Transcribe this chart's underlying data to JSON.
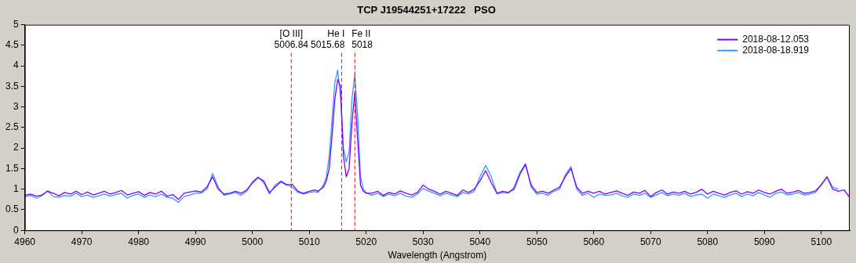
{
  "chart_data": {
    "type": "line",
    "title": "TCP J19544251+17222   PSO",
    "xlabel": "Wavelength (Angstrom)",
    "x": [
      4960,
      4961,
      4962,
      4963,
      4964,
      4965,
      4966,
      4967,
      4968,
      4969,
      4970,
      4971,
      4972,
      4973,
      4974,
      4975,
      4976,
      4977,
      4978,
      4979,
      4980,
      4981,
      4982,
      4983,
      4984,
      4985,
      4986,
      4987,
      4988,
      4989,
      4990,
      4991,
      4992,
      4993,
      4994,
      4995,
      4996,
      4997,
      4998,
      4999,
      5000,
      5001,
      5002,
      5003,
      5004,
      5005,
      5006,
      5007,
      5008,
      5009,
      5010,
      5011,
      5011.5,
      5012,
      5012.5,
      5013,
      5013.5,
      5014,
      5014.5,
      5015,
      5015.5,
      5016,
      5016.5,
      5017,
      5017.5,
      5018,
      5018.5,
      5019,
      5019.5,
      5020,
      5021,
      5022,
      5023,
      5024,
      5025,
      5026,
      5027,
      5028,
      5029,
      5030,
      5031,
      5032,
      5033,
      5034,
      5035,
      5036,
      5037,
      5038,
      5039,
      5040,
      5041,
      5042,
      5043,
      5044,
      5045,
      5046,
      5047,
      5048,
      5049,
      5050,
      5051,
      5052,
      5053,
      5054,
      5055,
      5056,
      5057,
      5058,
      5059,
      5060,
      5061,
      5062,
      5063,
      5064,
      5065,
      5066,
      5067,
      5068,
      5069,
      5070,
      5071,
      5072,
      5073,
      5074,
      5075,
      5076,
      5077,
      5078,
      5079,
      5080,
      5081,
      5082,
      5083,
      5084,
      5085,
      5086,
      5087,
      5088,
      5089,
      5090,
      5091,
      5092,
      5093,
      5094,
      5095,
      5096,
      5097,
      5098,
      5099,
      5100,
      5101,
      5102,
      5103,
      5104,
      5105
    ],
    "series": [
      {
        "name": "2018-08-12.053",
        "color": "#7f00ff",
        "values": [
          0.85,
          0.88,
          0.83,
          0.86,
          0.95,
          0.9,
          0.84,
          0.92,
          0.88,
          0.95,
          0.87,
          0.93,
          0.86,
          0.9,
          0.95,
          0.88,
          0.92,
          0.97,
          0.86,
          0.9,
          0.94,
          0.85,
          0.92,
          0.88,
          0.95,
          0.83,
          0.87,
          0.75,
          0.9,
          0.93,
          0.96,
          0.93,
          1.05,
          1.3,
          1.0,
          0.88,
          0.9,
          0.95,
          0.9,
          0.98,
          1.15,
          1.28,
          1.2,
          0.92,
          1.05,
          1.18,
          1.1,
          1.12,
          0.95,
          0.9,
          0.95,
          0.98,
          0.95,
          1.0,
          1.05,
          1.2,
          1.5,
          2.3,
          3.2,
          3.67,
          3.5,
          1.8,
          1.3,
          1.5,
          2.6,
          3.35,
          2.2,
          1.1,
          0.95,
          0.9,
          0.9,
          0.95,
          0.85,
          0.92,
          0.88,
          0.96,
          0.9,
          0.86,
          0.92,
          1.1,
          1.0,
          0.95,
          0.88,
          0.95,
          0.9,
          0.85,
          0.98,
          0.92,
          1.0,
          1.2,
          1.45,
          1.15,
          0.9,
          0.95,
          0.92,
          1.0,
          1.35,
          1.6,
          1.1,
          0.92,
          0.95,
          0.9,
          0.98,
          1.05,
          1.3,
          1.5,
          1.05,
          0.9,
          0.95,
          0.9,
          0.95,
          0.88,
          0.92,
          0.96,
          0.9,
          0.85,
          0.93,
          0.9,
          0.97,
          0.82,
          0.92,
          0.98,
          0.88,
          0.93,
          0.9,
          0.95,
          0.88,
          0.92,
          1.0,
          0.88,
          0.95,
          0.9,
          0.86,
          0.92,
          0.96,
          0.88,
          0.94,
          0.9,
          0.98,
          0.92,
          0.88,
          0.95,
          1.0,
          0.9,
          0.93,
          0.97,
          0.9,
          0.92,
          0.96,
          1.1,
          1.3,
          1.0,
          0.95,
          0.98,
          0.8
        ]
      },
      {
        "name": "2018-08-18.919",
        "color": "#3399ff",
        "values": [
          0.82,
          0.85,
          0.78,
          0.84,
          0.96,
          0.82,
          0.8,
          0.85,
          0.83,
          0.9,
          0.82,
          0.86,
          0.8,
          0.84,
          0.88,
          0.83,
          0.87,
          0.9,
          0.78,
          0.85,
          0.88,
          0.8,
          0.86,
          0.82,
          0.88,
          0.8,
          0.78,
          0.68,
          0.82,
          0.86,
          0.9,
          0.9,
          1.0,
          1.38,
          1.05,
          0.85,
          0.88,
          0.92,
          0.85,
          0.95,
          1.18,
          1.3,
          1.15,
          0.88,
          1.1,
          1.2,
          1.12,
          1.05,
          0.92,
          0.88,
          0.92,
          0.94,
          0.92,
          1.0,
          1.1,
          1.3,
          1.8,
          2.7,
          3.6,
          3.9,
          3.2,
          2.0,
          1.67,
          1.9,
          3.2,
          3.78,
          2.8,
          1.3,
          1.0,
          0.92,
          0.85,
          0.9,
          0.82,
          0.88,
          0.84,
          0.9,
          0.83,
          0.8,
          0.88,
          1.02,
          0.95,
          0.9,
          0.84,
          0.9,
          0.86,
          0.82,
          0.92,
          0.88,
          0.95,
          1.3,
          1.58,
          1.3,
          0.88,
          0.92,
          0.9,
          1.05,
          1.4,
          1.62,
          1.05,
          0.88,
          0.9,
          0.85,
          0.95,
          1.0,
          1.35,
          1.55,
          1.0,
          0.85,
          0.9,
          0.8,
          0.88,
          0.85,
          0.86,
          0.9,
          0.84,
          0.8,
          0.88,
          0.85,
          0.9,
          0.8,
          0.86,
          0.92,
          0.84,
          0.88,
          0.85,
          0.9,
          0.82,
          0.86,
          0.88,
          0.78,
          0.88,
          0.84,
          0.8,
          0.86,
          0.9,
          0.82,
          0.88,
          0.84,
          0.92,
          0.86,
          0.8,
          0.9,
          0.93,
          0.86,
          0.88,
          0.92,
          0.86,
          0.88,
          0.92,
          1.12,
          1.3,
          1.05,
          1.0,
          null,
          null
        ]
      }
    ],
    "xlim": [
      4960,
      5105
    ],
    "xticks": [
      4960,
      4970,
      4980,
      4990,
      5000,
      5010,
      5020,
      5030,
      5040,
      5050,
      5060,
      5070,
      5080,
      5090,
      5100
    ],
    "ylim": [
      0,
      5
    ],
    "yticks": [
      0,
      0.5,
      1,
      1.5,
      2,
      2.5,
      3,
      3.5,
      4,
      4.5,
      5
    ],
    "ref_lines": [
      {
        "axis": "x",
        "value": 5006.84,
        "label": "[O III]\n5006.84",
        "color": "#ff0000",
        "line_style": "dashed"
      },
      {
        "axis": "x",
        "value": 5015.68,
        "label": "He I\n5015.68",
        "color": "#ff0000",
        "line_style": "dashed"
      },
      {
        "axis": "x",
        "value": 5018,
        "label": "Fe II\n5018",
        "color": "#ff0000",
        "line_style": "dashed"
      }
    ],
    "grid": false,
    "legend": "top right",
    "marker": "none",
    "line_style": "solid"
  }
}
